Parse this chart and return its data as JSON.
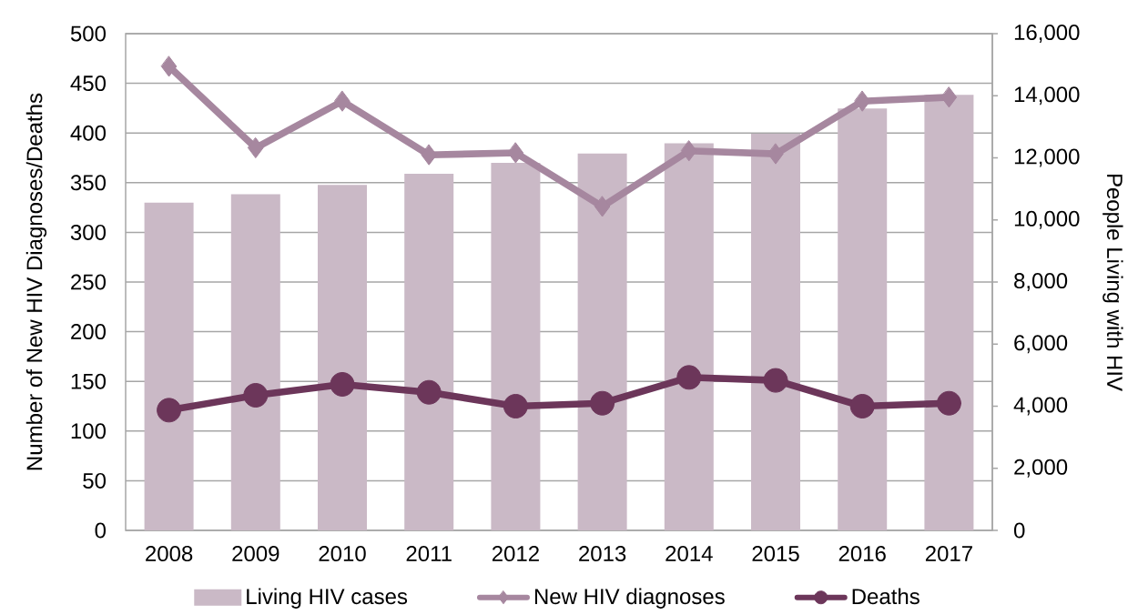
{
  "chart_data": {
    "type": "bar",
    "categories": [
      "2008",
      "2009",
      "2010",
      "2011",
      "2012",
      "2013",
      "2014",
      "2015",
      "2016",
      "2017"
    ],
    "series": [
      {
        "name": "Living HIV cases",
        "axis": "y2",
        "color": "#cab9c6",
        "values": [
          10560,
          10830,
          11130,
          11490,
          11840,
          12140,
          12470,
          12780,
          13590,
          14030
        ]
      },
      {
        "name": "New HIV diagnoses",
        "type": "line",
        "color": "#a6879f",
        "marker": "diamond",
        "values": [
          467,
          385,
          432,
          378,
          380,
          326,
          382,
          379,
          432,
          436
        ]
      },
      {
        "name": "Deaths",
        "type": "line",
        "color": "#6c365a",
        "marker": "circle",
        "values": [
          121,
          136,
          147,
          139,
          125,
          128,
          154,
          151,
          125,
          128
        ]
      }
    ],
    "ylabel": "Number of New HIV Diagnoses/Deaths",
    "y2label": "People Living with HIV",
    "ylim": [
      0,
      500
    ],
    "yticks": [
      0,
      50,
      100,
      150,
      200,
      250,
      300,
      350,
      400,
      450,
      500
    ],
    "y2lim": [
      0,
      16000
    ],
    "y2ticks": [
      0,
      {
        "value": 2000,
        "label": "2,000"
      },
      {
        "value": 4000,
        "label": "4,000"
      },
      {
        "value": 6000,
        "label": "6,000"
      },
      {
        "value": 8000,
        "label": "8,000"
      },
      {
        "value": 10000,
        "label": "10,000"
      },
      {
        "value": 12000,
        "label": "12,000"
      },
      {
        "value": 14000,
        "label": "14,000"
      },
      {
        "value": 16000,
        "label": "16,000"
      }
    ],
    "grid": "y",
    "legend": "bottom"
  }
}
